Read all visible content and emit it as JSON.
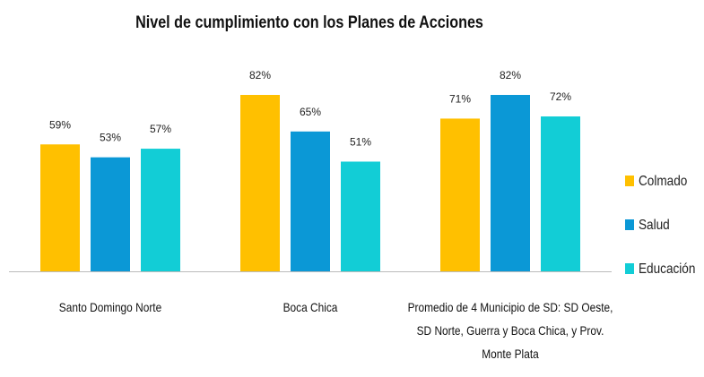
{
  "chart_data": {
    "type": "bar",
    "title": "Nivel de cumplimiento con los Planes de Acciones",
    "categories": [
      "Santo Domingo Norte",
      "Boca Chica",
      "Promedio de 4 Municipio de SD: SD Oeste, SD Norte, Guerra y Boca Chica, y Prov. Monte Plata"
    ],
    "series": [
      {
        "name": "Colmado",
        "color": "#FFC000",
        "values": [
          59,
          82,
          71
        ],
        "value_labels": [
          "59%",
          "82%",
          "71%"
        ]
      },
      {
        "name": "Salud",
        "color": "#0B98D6",
        "values": [
          53,
          65,
          82
        ],
        "value_labels": [
          "53%",
          "65%",
          "82%"
        ]
      },
      {
        "name": "Educación",
        "color": "#12CDD6",
        "values": [
          57,
          51,
          72
        ],
        "value_labels": [
          "57%",
          "51%",
          "72%"
        ]
      }
    ],
    "legend": "right"
  }
}
